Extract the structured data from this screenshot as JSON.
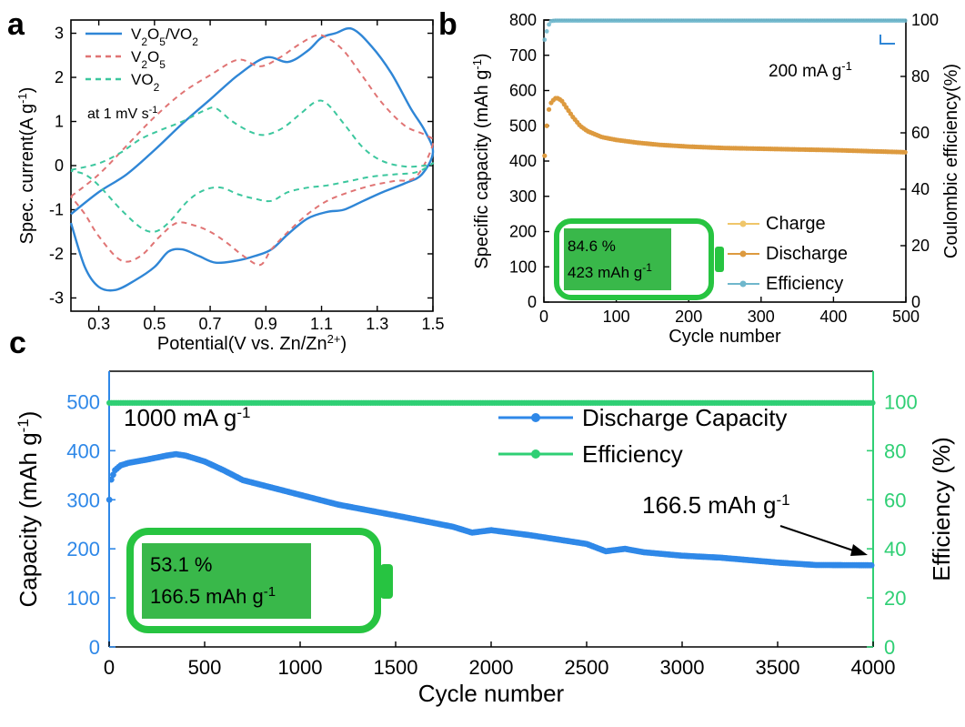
{
  "colors": {
    "blue": "#2f86d6",
    "red": "#e07474",
    "teal": "#3cc79e",
    "orange": "#dd9a3f",
    "charge": "#f0c66a",
    "eff_b": "#6fb7cc",
    "green": "#27c441",
    "battery_fill": "#39b84a",
    "eff_c": "#2fcf74",
    "cap_c": "#2f88e8",
    "axis": "#000000"
  },
  "chart_data": [
    {
      "panel": "a",
      "type": "line",
      "xlabel": "Potential(V vs. Zn/Zn",
      "xlabel_sup": "2+",
      "xlabel_tail": ")",
      "ylabel": "Spec. current(A g",
      "ylabel_sup": "-1",
      "ylabel_tail": ")",
      "xlim": [
        0.2,
        1.5
      ],
      "ylim": [
        -3.3,
        3.3
      ],
      "xticks": [
        0.3,
        0.5,
        0.7,
        0.9,
        1.1,
        1.3,
        1.5
      ],
      "xtick_labels": [
        "0.3",
        "0.5",
        "0.7",
        "0.9",
        "1.1",
        "1.3",
        "1.5"
      ],
      "yticks": [
        -3,
        -2,
        -1,
        0,
        1,
        2,
        3
      ],
      "ytick_labels": [
        "-3",
        "-2",
        "-1",
        "0",
        "1",
        "2",
        "3"
      ],
      "annotation": "at 1 mV s",
      "annotation_sup": "-1",
      "legend": [
        {
          "base": "V",
          "s1": "2",
          "mid": "O",
          "s2": "5",
          "rest": "/VO",
          "s3": "2",
          "color_key": "blue",
          "dash": false
        },
        {
          "base": "V",
          "s1": "2",
          "mid": "O",
          "s2": "5",
          "rest": "",
          "s3": "",
          "color_key": "red",
          "dash": true
        },
        {
          "base": "VO",
          "s1": "2",
          "mid": "",
          "s2": "",
          "rest": "",
          "s3": "",
          "color_key": "teal",
          "dash": true
        }
      ],
      "series": [
        {
          "color_key": "blue",
          "dash": false,
          "x": [
            0.2,
            0.3,
            0.4,
            0.5,
            0.6,
            0.7,
            0.8,
            0.9,
            0.98,
            1.05,
            1.1,
            1.15,
            1.21,
            1.28,
            1.35,
            1.42,
            1.47,
            1.5,
            1.46,
            1.4,
            1.32,
            1.25,
            1.18,
            1.12,
            1.05,
            0.98,
            0.92,
            0.86,
            0.8,
            0.72,
            0.66,
            0.6,
            0.55,
            0.5,
            0.43,
            0.36,
            0.3,
            0.25,
            0.2
          ],
          "y": [
            -1.1,
            -0.6,
            -0.2,
            0.35,
            0.95,
            1.5,
            2.05,
            2.45,
            2.35,
            2.6,
            2.9,
            3.0,
            3.1,
            2.7,
            2.1,
            1.3,
            0.8,
            0.3,
            -0.2,
            -0.4,
            -0.6,
            -0.8,
            -1.0,
            -1.05,
            -1.2,
            -1.55,
            -1.9,
            -2.05,
            -2.15,
            -2.2,
            -2.05,
            -1.9,
            -1.95,
            -2.3,
            -2.6,
            -2.82,
            -2.75,
            -2.3,
            -1.3
          ]
        },
        {
          "color_key": "red",
          "dash": true,
          "x": [
            0.2,
            0.3,
            0.4,
            0.5,
            0.6,
            0.7,
            0.8,
            0.88,
            0.95,
            1.02,
            1.08,
            1.12,
            1.18,
            1.25,
            1.32,
            1.4,
            1.47,
            1.5,
            1.44,
            1.36,
            1.28,
            1.2,
            1.12,
            1.05,
            0.98,
            0.92,
            0.88,
            0.82,
            0.76,
            0.7,
            0.64,
            0.58,
            0.52,
            0.45,
            0.38,
            0.3,
            0.25,
            0.2
          ],
          "y": [
            -0.7,
            -0.2,
            0.45,
            1.1,
            1.65,
            2.05,
            2.4,
            2.25,
            2.45,
            2.75,
            2.95,
            2.9,
            2.6,
            2.0,
            1.4,
            0.9,
            0.7,
            0.5,
            -0.25,
            -0.35,
            -0.45,
            -0.6,
            -0.8,
            -1.1,
            -1.5,
            -1.9,
            -2.25,
            -2.05,
            -1.75,
            -1.5,
            -1.35,
            -1.3,
            -1.6,
            -2.05,
            -2.15,
            -1.6,
            -1.1,
            -0.7
          ]
        },
        {
          "color_key": "teal",
          "dash": true,
          "x": [
            0.2,
            0.3,
            0.38,
            0.45,
            0.52,
            0.6,
            0.68,
            0.72,
            0.78,
            0.85,
            0.9,
            0.96,
            1.02,
            1.08,
            1.12,
            1.18,
            1.25,
            1.32,
            1.4,
            1.47,
            1.5,
            1.44,
            1.36,
            1.28,
            1.2,
            1.12,
            1.05,
            0.98,
            0.92,
            0.86,
            0.8,
            0.74,
            0.68,
            0.62,
            0.55,
            0.5,
            0.45,
            0.38,
            0.3,
            0.25,
            0.2
          ],
          "y": [
            -0.1,
            0.05,
            0.3,
            0.6,
            0.8,
            1.0,
            1.25,
            1.3,
            1.0,
            0.75,
            0.7,
            0.85,
            1.15,
            1.45,
            1.4,
            0.95,
            0.4,
            0.1,
            -0.02,
            0.0,
            0.05,
            -0.15,
            -0.2,
            -0.25,
            -0.35,
            -0.45,
            -0.5,
            -0.6,
            -0.8,
            -0.75,
            -0.65,
            -0.5,
            -0.55,
            -0.8,
            -1.3,
            -1.5,
            -1.4,
            -1.0,
            -0.45,
            -0.2,
            -0.12
          ]
        }
      ]
    },
    {
      "panel": "b",
      "type": "scatter",
      "xlabel": "Cycle number",
      "ylabel": "Specific capacity (mAh g",
      "ylabel_sup": "-1",
      "ylabel_tail": ")",
      "y2label": "Coulombic efficiency(%)",
      "xlim": [
        0,
        500
      ],
      "ylim": [
        0,
        800
      ],
      "y2lim": [
        0,
        100
      ],
      "xticks": [
        0,
        100,
        200,
        300,
        400,
        500
      ],
      "yticks": [
        0,
        100,
        200,
        300,
        400,
        500,
        600,
        700,
        800
      ],
      "y2ticks": [
        0,
        20,
        40,
        60,
        80,
        100
      ],
      "annotation": "200 mA g",
      "annotation_sup": "-1",
      "battery": {
        "line1": "84.6 %",
        "line2": "423 mAh g",
        "line2_sup": "-1"
      },
      "legend": [
        {
          "label": "Charge",
          "color_key": "charge"
        },
        {
          "label": "Discharge",
          "color_key": "orange"
        },
        {
          "label": "Efficiency",
          "color_key": "eff_b"
        }
      ],
      "series": [
        {
          "name": "Discharge",
          "axis": "left",
          "color_key": "orange",
          "x": [
            1,
            3,
            6,
            10,
            15,
            20,
            25,
            30,
            40,
            50,
            60,
            80,
            100,
            130,
            160,
            200,
            250,
            300,
            350,
            400,
            450,
            500
          ],
          "y": [
            415,
            480,
            540,
            565,
            578,
            578,
            570,
            555,
            525,
            500,
            485,
            468,
            460,
            452,
            446,
            441,
            437,
            435,
            433,
            431,
            428,
            425
          ]
        },
        {
          "name": "Efficiency",
          "axis": "right",
          "color_key": "eff_b",
          "x": [
            1,
            3,
            6,
            10,
            15,
            20,
            30,
            50,
            100,
            200,
            300,
            400,
            500
          ],
          "y": [
            93,
            95,
            98,
            99.6,
            99.8,
            99.8,
            99.8,
            99.8,
            99.8,
            99.8,
            99.8,
            99.8,
            99.8
          ]
        }
      ]
    },
    {
      "panel": "c",
      "type": "scatter",
      "xlabel": "Cycle number",
      "ylabel": "Capacity (mAh g",
      "ylabel_sup": "-1",
      "ylabel_tail": ")",
      "y2label": "Efficiency (%)",
      "xlim": [
        0,
        4000
      ],
      "ylim": [
        0,
        562
      ],
      "y2lim": [
        0,
        112.4
      ],
      "xticks": [
        0,
        500,
        1000,
        1500,
        2000,
        2500,
        3000,
        3500,
        4000
      ],
      "yticks": [
        0,
        100,
        200,
        300,
        400,
        500
      ],
      "y2ticks": [
        0,
        20,
        40,
        60,
        80,
        100
      ],
      "annotation": "1000 mA g",
      "annotation_sup": "-1",
      "end_label": "166.5 mAh g",
      "end_label_sup": "-1",
      "battery": {
        "line1": "53.1 %",
        "line2": "166.5 mAh g",
        "line2_sup": "-1"
      },
      "legend": [
        {
          "label": "Discharge Capacity",
          "color_key": "cap_c"
        },
        {
          "label": "Efficiency",
          "color_key": "eff_c"
        }
      ],
      "series": [
        {
          "name": "Discharge Capacity",
          "axis": "left",
          "color_key": "cap_c",
          "x": [
            1,
            10,
            30,
            60,
            100,
            200,
            300,
            350,
            400,
            500,
            600,
            700,
            800,
            1000,
            1200,
            1500,
            1800,
            1900,
            2000,
            2200,
            2500,
            2600,
            2700,
            2800,
            3000,
            3200,
            3500,
            3700,
            4000
          ],
          "y": [
            300,
            340,
            360,
            370,
            375,
            382,
            390,
            393,
            390,
            378,
            360,
            340,
            330,
            310,
            290,
            268,
            245,
            233,
            238,
            228,
            210,
            195,
            200,
            193,
            186,
            182,
            172,
            167,
            166.5
          ]
        },
        {
          "name": "Efficiency",
          "axis": "right",
          "color_key": "eff_c",
          "x": [
            1,
            500,
            1000,
            1500,
            2000,
            2500,
            3000,
            3500,
            4000
          ],
          "y": [
            99.5,
            99.5,
            99.5,
            99.5,
            99.5,
            99.5,
            99.5,
            99.5,
            99.5
          ]
        }
      ]
    }
  ]
}
